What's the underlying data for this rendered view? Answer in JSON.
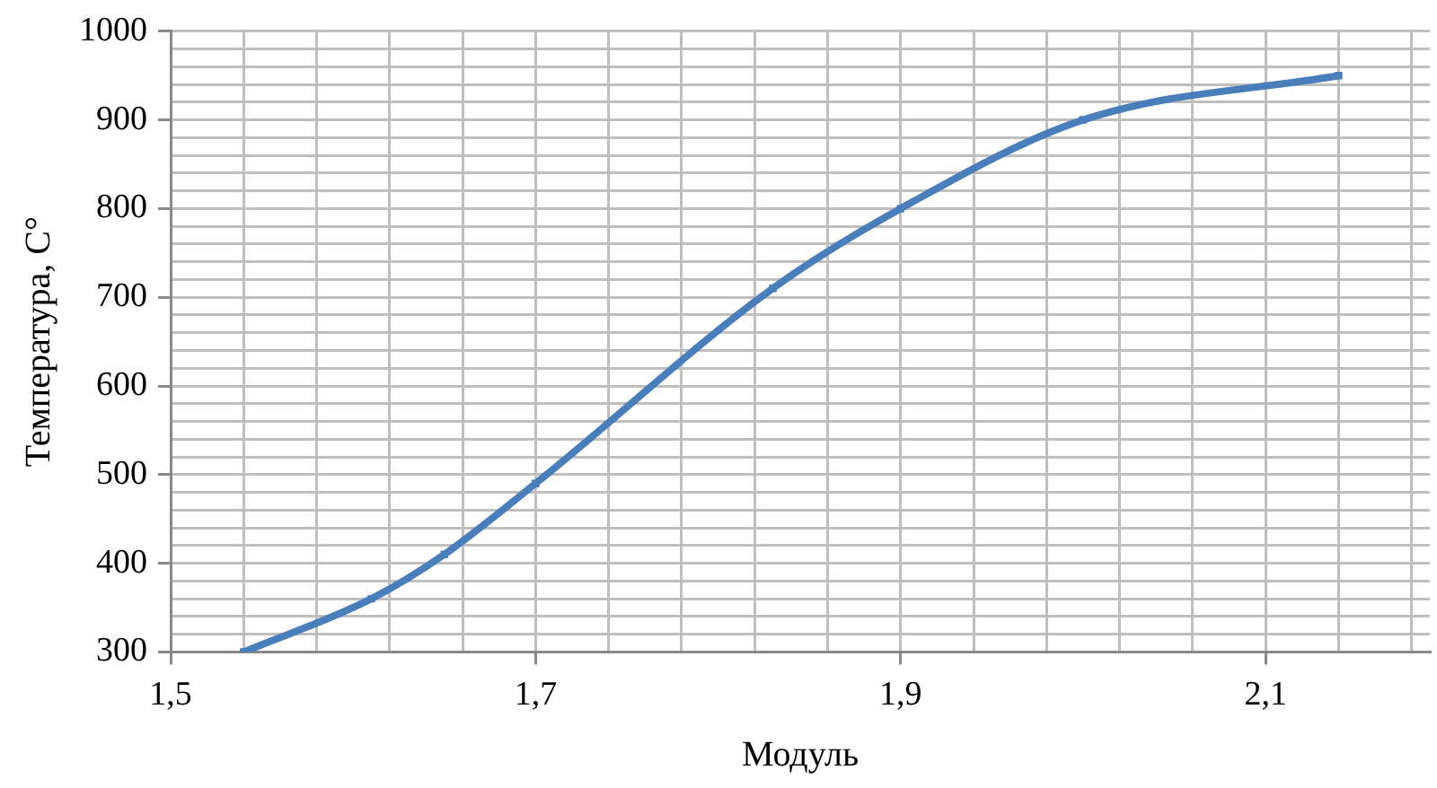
{
  "chart_data": {
    "type": "line",
    "xlabel": "Модуль",
    "ylabel": "Температура, С°",
    "x": [
      1.54,
      1.61,
      1.65,
      1.7,
      1.83,
      1.9,
      2.0,
      2.14
    ],
    "series": [
      {
        "color": "#4a7ebb",
        "values": [
          300,
          360,
          410,
          490,
          710,
          800,
          900,
          950
        ]
      }
    ],
    "xlim": [
      1.5,
      2.19
    ],
    "xticks": [
      {
        "value": 1.5,
        "label": "1,5"
      },
      {
        "value": 1.54,
        "label": null
      },
      {
        "value": 1.58,
        "label": null
      },
      {
        "value": 1.62,
        "label": null
      },
      {
        "value": 1.66,
        "label": null
      },
      {
        "value": 1.7,
        "label": "1,7"
      },
      {
        "value": 1.74,
        "label": null
      },
      {
        "value": 1.78,
        "label": null
      },
      {
        "value": 1.82,
        "label": null
      },
      {
        "value": 1.86,
        "label": null
      },
      {
        "value": 1.9,
        "label": "1,9"
      },
      {
        "value": 1.94,
        "label": null
      },
      {
        "value": 1.98,
        "label": null
      },
      {
        "value": 2.02,
        "label": null
      },
      {
        "value": 2.06,
        "label": null
      },
      {
        "value": 2.1,
        "label": "2,1"
      },
      {
        "value": 2.14,
        "label": null
      },
      {
        "value": 2.18,
        "label": null
      }
    ],
    "ylim": [
      300,
      1000
    ],
    "yticks": [
      300,
      {
        "value": 320,
        "label": null
      },
      {
        "value": 340,
        "label": null
      },
      {
        "value": 360,
        "label": null
      },
      {
        "value": 380,
        "label": null
      },
      400,
      {
        "value": 420,
        "label": null
      },
      {
        "value": 440,
        "label": null
      },
      {
        "value": 460,
        "label": null
      },
      {
        "value": 480,
        "label": null
      },
      500,
      {
        "value": 520,
        "label": null
      },
      {
        "value": 540,
        "label": null
      },
      {
        "value": 560,
        "label": null
      },
      {
        "value": 580,
        "label": null
      },
      600,
      {
        "value": 620,
        "label": null
      },
      {
        "value": 640,
        "label": null
      },
      {
        "value": 660,
        "label": null
      },
      {
        "value": 680,
        "label": null
      },
      700,
      {
        "value": 720,
        "label": null
      },
      {
        "value": 740,
        "label": null
      },
      {
        "value": 760,
        "label": null
      },
      {
        "value": 780,
        "label": null
      },
      800,
      {
        "value": 820,
        "label": null
      },
      {
        "value": 840,
        "label": null
      },
      {
        "value": 860,
        "label": null
      },
      {
        "value": 880,
        "label": null
      },
      900,
      {
        "value": 920,
        "label": null
      },
      {
        "value": 940,
        "label": null
      },
      {
        "value": 960,
        "label": null
      },
      {
        "value": 980,
        "label": null
      },
      1000
    ],
    "grid": true,
    "marker": "square",
    "line_style": "solid",
    "legend": false
  }
}
